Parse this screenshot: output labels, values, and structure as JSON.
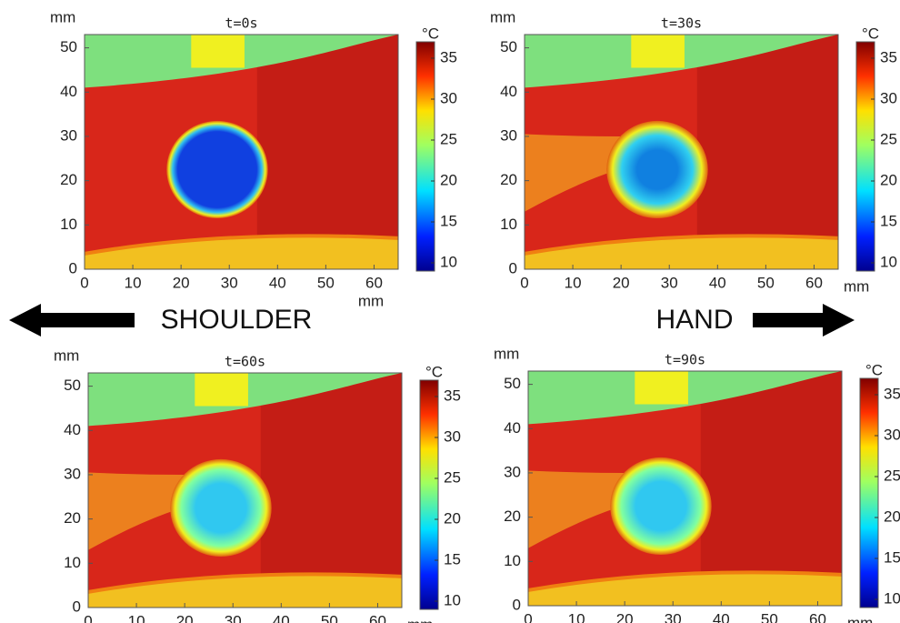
{
  "chart_data": [
    {
      "type": "heatmap",
      "title": "t=0s",
      "x_label": "mm",
      "y_label": "mm",
      "xlim": [
        0,
        65
      ],
      "ylim": [
        0,
        53
      ],
      "xticks": [
        0,
        10,
        20,
        30,
        40,
        50,
        60
      ],
      "yticks": [
        0,
        10,
        20,
        30,
        40,
        50
      ],
      "colorbar": {
        "label": "°C",
        "lim": [
          9,
          37
        ],
        "ticks": [
          10,
          15,
          20,
          25,
          30,
          35
        ]
      }
    },
    {
      "type": "heatmap",
      "title": "t=30s",
      "x_label": "mm",
      "y_label": "mm",
      "xlim": [
        0,
        65
      ],
      "ylim": [
        0,
        53
      ],
      "xticks": [
        0,
        10,
        20,
        30,
        40,
        50,
        60
      ],
      "yticks": [
        0,
        10,
        20,
        30,
        40,
        50
      ],
      "colorbar": {
        "label": "°C",
        "lim": [
          9,
          37
        ],
        "ticks": [
          10,
          15,
          20,
          25,
          30,
          35
        ]
      }
    },
    {
      "type": "heatmap",
      "title": "t=60s",
      "x_label": "mm",
      "y_label": "mm",
      "xlim": [
        0,
        65
      ],
      "ylim": [
        0,
        53
      ],
      "xticks": [
        0,
        10,
        20,
        30,
        40,
        50,
        60
      ],
      "yticks": [
        0,
        10,
        20,
        30,
        40,
        50
      ],
      "colorbar": {
        "label": "°C",
        "lim": [
          9,
          37
        ],
        "ticks": [
          10,
          15,
          20,
          25,
          30,
          35
        ]
      }
    },
    {
      "type": "heatmap",
      "title": "t=90s",
      "x_label": "mm",
      "y_label": "mm",
      "xlim": [
        0,
        65
      ],
      "ylim": [
        0,
        53
      ],
      "xticks": [
        0,
        10,
        20,
        30,
        40,
        50,
        60
      ],
      "yticks": [
        0,
        10,
        20,
        30,
        40,
        50
      ],
      "colorbar": {
        "label": "°C",
        "lim": [
          9,
          37
        ],
        "ticks": [
          10,
          15,
          20,
          25,
          30,
          35
        ]
      }
    }
  ],
  "labels": {
    "left": "SHOULDER",
    "right": "HAND"
  }
}
